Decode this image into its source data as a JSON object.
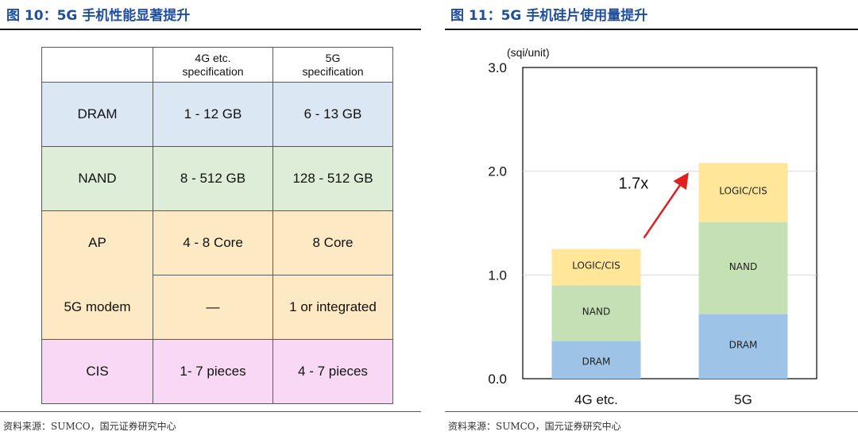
{
  "left_panel": {
    "title": "图 10：5G 手机性能显著提升",
    "source": "资料来源：SUMCO，国元证券研究中心",
    "table": {
      "headers": [
        "",
        "4G etc.\nspecification",
        "5G\nspecification"
      ],
      "header_lines": {
        "col1_line1": "4G etc.",
        "col1_line2": "specification",
        "col2_line1": "5G",
        "col2_line2": "specification"
      },
      "rows": [
        {
          "label": "DRAM",
          "g4": "1 - 12 GB",
          "g5": "6 - 13 GB"
        },
        {
          "label": "NAND",
          "g4": "8 - 512 GB",
          "g5": "128 - 512 GB"
        },
        {
          "label": "AP",
          "g4": "4 - 8 Core",
          "g5": "8 Core"
        },
        {
          "label": "5G modem",
          "g4": "—",
          "g5": "1 or integrated"
        },
        {
          "label": "CIS",
          "g4": "1- 7 pieces",
          "g5": "4 - 7 pieces"
        }
      ],
      "colors": {
        "DRAM": "#dbe8f4",
        "NAND": "#deedd7",
        "AP": "#fde9c3",
        "CIS": "#f8d8f4"
      }
    }
  },
  "right_panel": {
    "title": "图 11：5G 手机硅片使用量提升",
    "source": "资料来源：SUMCO，国元证券研究中心"
  },
  "chart_data": {
    "type": "bar",
    "stacked": true,
    "unit_label": "(sqi/unit)",
    "categories": [
      "4G etc.",
      "5G"
    ],
    "series": [
      {
        "name": "DRAM",
        "values": [
          0.36,
          0.62
        ],
        "color": "#9dc3e6"
      },
      {
        "name": "NAND",
        "values": [
          0.54,
          0.89
        ],
        "color": "#c5e0b4"
      },
      {
        "name": "LOGIC/CIS",
        "values": [
          0.35,
          0.57
        ],
        "color": "#ffe699"
      }
    ],
    "ylim": [
      0,
      3.0
    ],
    "yticks": [
      "0.0",
      "1.0",
      "2.0",
      "3.0"
    ],
    "ytick_values": [
      0,
      1,
      2,
      3
    ],
    "grid": true,
    "annotation": {
      "text": "1.7x",
      "arrow_color": "#e02020"
    }
  }
}
